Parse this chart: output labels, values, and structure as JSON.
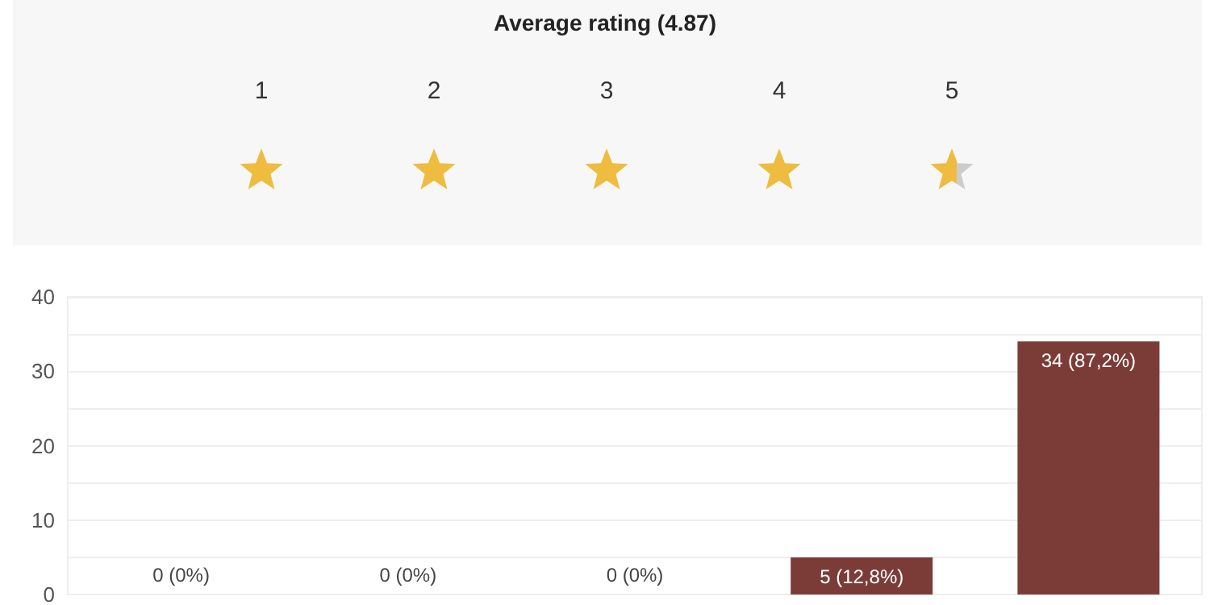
{
  "chart_data": {
    "type": "bar",
    "title": "Average rating (4.87)",
    "annotations": [
      "1",
      "2",
      "3",
      "4",
      "5"
    ],
    "categories": [
      null,
      null,
      null,
      null,
      null
    ],
    "values": [
      0,
      0,
      0,
      5,
      34
    ],
    "value_labels": [
      "0 (0%)",
      "0 (0%)",
      "0 (0%)",
      "5 (12,8%)",
      "34 (87,2%)"
    ],
    "color": "#7b3c38",
    "ylim": [
      0,
      40
    ],
    "yticks": [
      0,
      {
        "value": 5,
        "label": null
      },
      10,
      {
        "value": 15,
        "label": null
      },
      20,
      {
        "value": 25,
        "label": null
      },
      30,
      {
        "value": 35,
        "label": null
      },
      40
    ],
    "grid": true
  }
}
